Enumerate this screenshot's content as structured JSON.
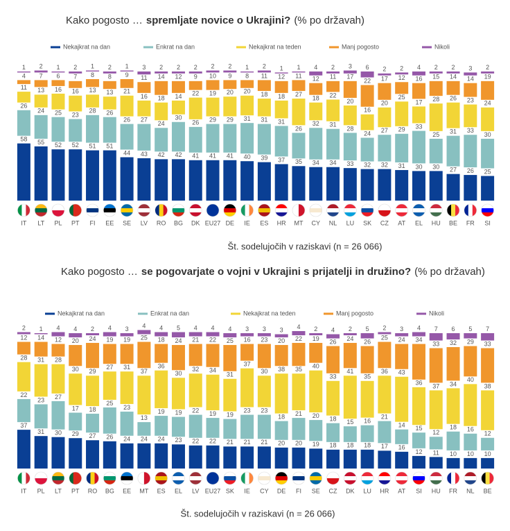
{
  "chart_data": [
    {
      "type": "stacked_bar",
      "title": [
        "Kako pogosto …",
        "spremljate novice o Ukrajini?",
        "(% po državah)"
      ],
      "note": "Št. sodelujočih v raziskavi (n = 26 066)",
      "ylim": [
        0,
        100
      ],
      "categories": [
        "IT",
        "LT",
        "PL",
        "PT",
        "FI",
        "EE",
        "SE",
        "LV",
        "RO",
        "BG",
        "DK",
        "EU27",
        "DE",
        "IE",
        "ES",
        "HR",
        "MT",
        "CY",
        "NL",
        "LU",
        "SK",
        "CZ",
        "AT",
        "EL",
        "HU",
        "BE",
        "FR",
        "SI"
      ],
      "series": [
        {
          "name": "Nekajkrat na dan",
          "color": "#0a3f94",
          "values": [
            58,
            55,
            52,
            52,
            51,
            51,
            44,
            43,
            42,
            42,
            41,
            41,
            41,
            40,
            39,
            37,
            35,
            34,
            34,
            33,
            32,
            32,
            31,
            30,
            30,
            27,
            26,
            25
          ]
        },
        {
          "name": "Enkrat na dan",
          "color": "#88c0c0",
          "values": [
            26,
            24,
            25,
            23,
            28,
            26,
            26,
            27,
            24,
            30,
            26,
            29,
            29,
            31,
            31,
            31,
            26,
            32,
            31,
            28,
            24,
            27,
            29,
            33,
            25,
            31,
            33,
            30
          ]
        },
        {
          "name": "Nekajkrat na teden",
          "color": "#f2d536",
          "values": [
            11,
            13,
            16,
            16,
            13,
            13,
            21,
            16,
            18,
            14,
            22,
            19,
            20,
            20,
            18,
            18,
            27,
            18,
            22,
            20,
            16,
            20,
            25,
            17,
            28,
            26,
            23,
            24
          ]
        },
        {
          "name": "Manj pogosto",
          "color": "#f0962c",
          "values": [
            4,
            7,
            6,
            7,
            8,
            8,
            9,
            11,
            14,
            12,
            9,
            10,
            9,
            8,
            11,
            12,
            11,
            12,
            11,
            17,
            22,
            17,
            12,
            16,
            15,
            14,
            14,
            19
          ]
        },
        {
          "name": "Nikoli",
          "color": "#9558a8",
          "values": [
            1,
            2,
            1,
            2,
            1,
            2,
            1,
            3,
            2,
            2,
            2,
            2,
            2,
            1,
            2,
            1,
            1,
            4,
            2,
            3,
            6,
            2,
            2,
            4,
            2,
            2,
            3,
            2
          ]
        }
      ]
    },
    {
      "type": "stacked_bar",
      "title": [
        "Kako pogosto …",
        "se pogovarjate o vojni v Ukrajini s prijatelji in družino?",
        "(% po državah)"
      ],
      "note": "Št. sodelujočih v raziskavi (n = 26 066)",
      "ylim": [
        0,
        100
      ],
      "categories": [
        "IT",
        "PL",
        "LT",
        "PT",
        "RO",
        "BG",
        "EE",
        "MT",
        "ES",
        "EL",
        "LV",
        "EU27",
        "SK",
        "IE",
        "CY",
        "DE",
        "FI",
        "SE",
        "CZ",
        "DK",
        "LU",
        "HR",
        "AT",
        "SI",
        "HU",
        "FR",
        "NL",
        "BE"
      ],
      "series": [
        {
          "name": "Nekajkrat na dan",
          "color": "#0a3f94",
          "values": [
            37,
            31,
            30,
            29,
            27,
            26,
            24,
            24,
            24,
            23,
            22,
            22,
            21,
            21,
            21,
            20,
            20,
            19,
            18,
            18,
            18,
            17,
            16,
            12,
            11,
            10,
            10,
            10
          ]
        },
        {
          "name": "Enkrat na dan",
          "color": "#88c0c0",
          "values": [
            22,
            23,
            27,
            17,
            18,
            25,
            23,
            13,
            19,
            19,
            22,
            19,
            19,
            23,
            23,
            18,
            21,
            20,
            18,
            15,
            16,
            21,
            14,
            15,
            12,
            18,
            16,
            12
          ]
        },
        {
          "name": "Nekajkrat na teden",
          "color": "#f2d536",
          "values": [
            28,
            31,
            28,
            30,
            29,
            27,
            31,
            37,
            36,
            30,
            32,
            34,
            31,
            37,
            30,
            38,
            35,
            40,
            33,
            41,
            35,
            36,
            43,
            36,
            37,
            34,
            40,
            38
          ]
        },
        {
          "name": "Manj pogosto",
          "color": "#f0962c",
          "values": [
            12,
            14,
            12,
            20,
            24,
            19,
            19,
            25,
            18,
            24,
            21,
            22,
            25,
            16,
            23,
            20,
            22,
            19,
            26,
            24,
            26,
            25,
            24,
            34,
            33,
            32,
            29,
            33
          ]
        },
        {
          "name": "Nikoli",
          "color": "#9558a8",
          "values": [
            2,
            1,
            4,
            4,
            2,
            4,
            3,
            4,
            4,
            5,
            4,
            4,
            4,
            3,
            3,
            3,
            4,
            2,
            4,
            2,
            5,
            2,
            3,
            4,
            7,
            6,
            5,
            7
          ]
        }
      ]
    }
  ]
}
